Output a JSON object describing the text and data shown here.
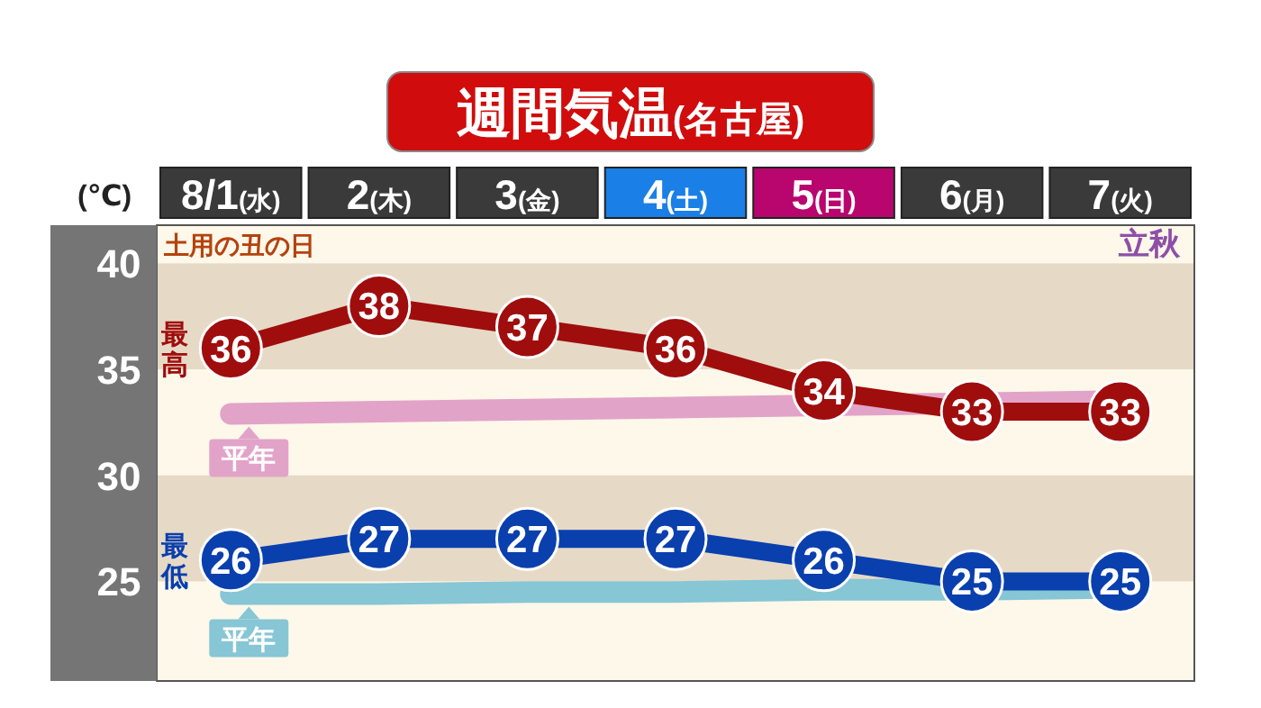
{
  "chart_data": {
    "type": "line",
    "title": "週間気温(名古屋)",
    "ylabel": "(℃)",
    "categories": [
      "8/1(水)",
      "2(木)",
      "3(金)",
      "4(土)",
      "5(日)",
      "6(月)",
      "7(火)"
    ],
    "series": [
      {
        "name": "平年",
        "color": "#e2a3c9",
        "marker": "none",
        "values": [
          32.9,
          33.0,
          33.1,
          33.2,
          33.3,
          33.4,
          33.5
        ]
      },
      {
        "name": "最高",
        "color": "#a00d0d",
        "marker": "circle",
        "values": [
          36,
          38,
          37,
          36,
          34,
          33,
          33
        ],
        "value_labels": [
          "36",
          "38",
          "37",
          "36",
          "34",
          "33",
          "33"
        ]
      },
      {
        "name": "平年",
        "color": "#86c6d5",
        "marker": "none",
        "values": [
          24.4,
          24.4,
          24.5,
          24.5,
          24.6,
          24.6,
          24.7
        ]
      },
      {
        "name": "最低",
        "color": "#0a3fae",
        "marker": "circle",
        "values": [
          26,
          27,
          27,
          27,
          26,
          25,
          25
        ],
        "value_labels": [
          "26",
          "27",
          "27",
          "27",
          "26",
          "25",
          "25"
        ]
      }
    ],
    "ylim": [
      20.3,
      41.8
    ],
    "yticks": [
      25,
      30,
      35,
      40
    ],
    "grid": false,
    "legend": "left",
    "bands": [
      {
        "axis": "y",
        "from": 35,
        "to": 40,
        "color": "#e6dac7"
      },
      {
        "axis": "y",
        "from": 25,
        "to": 30,
        "color": "#e6dac7"
      }
    ],
    "annotations": [
      "土用の丑の日",
      "立秋"
    ]
  }
}
